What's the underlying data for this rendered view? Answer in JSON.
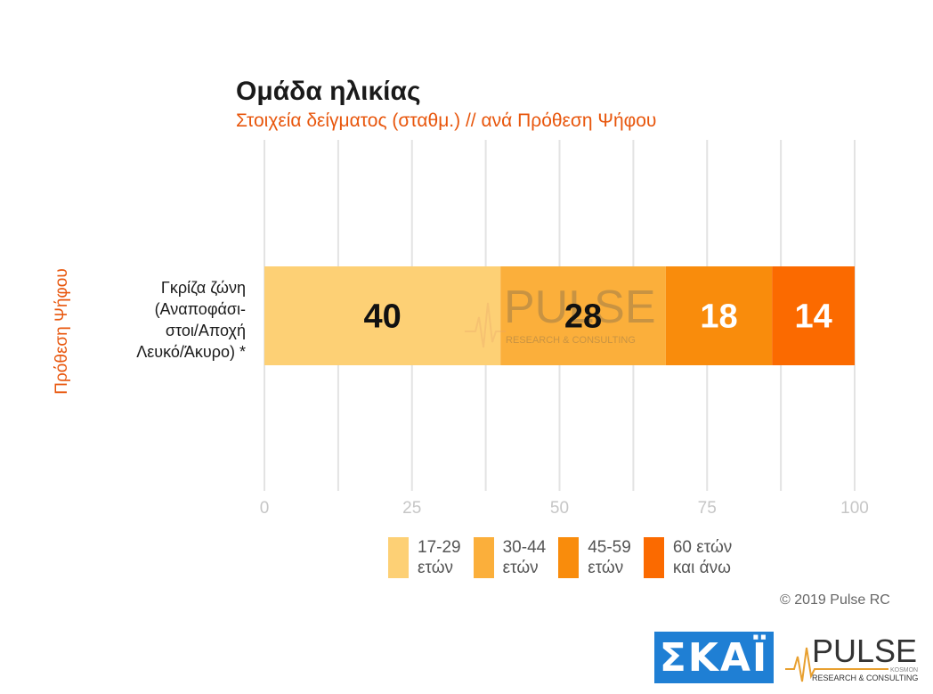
{
  "chart_data": {
    "type": "bar",
    "orientation": "horizontal",
    "stacked": true,
    "title": "Ομάδα ηλικίας",
    "subtitle": "Στοιχεία δείγματος (σταθμ.) // ανά Πρόθεση Ψήφου",
    "ylabel": "Πρόθεση Ψήφου",
    "categories": [
      "Γκρίζα ζώνη\n(Αναποφάσι-\nστοι/Αποχή\nΛευκό/Άκυρο) *"
    ],
    "series": [
      {
        "name": "17-29\nετών",
        "values": [
          40
        ],
        "color": "#fdd075",
        "label_color": "#111111"
      },
      {
        "name": "30-44\nετών",
        "values": [
          28
        ],
        "color": "#fbaf3b",
        "label_color": "#111111"
      },
      {
        "name": "45-59\nετών",
        "values": [
          18
        ],
        "color": "#f98c0c",
        "label_color": "#ffffff"
      },
      {
        "name": "60 ετών\nκαι άνω",
        "values": [
          14
        ],
        "color": "#fb6a00",
        "label_color": "#ffffff"
      }
    ],
    "xlim": [
      0,
      100
    ],
    "xticks": [
      0,
      25,
      50,
      75,
      100
    ],
    "grid": true,
    "legend_position": "bottom"
  },
  "footer": {
    "copyright": "© 2019 Pulse RC"
  },
  "logos": {
    "skai": "ΣΚΑΪ",
    "pulse": "PULSE",
    "pulse_sub": "RESEARCH & CONSULTING",
    "pulse_tag": "KOSMON"
  },
  "watermark": {
    "main": "PULSE",
    "sub": "RESEARCH & CONSULTING"
  }
}
